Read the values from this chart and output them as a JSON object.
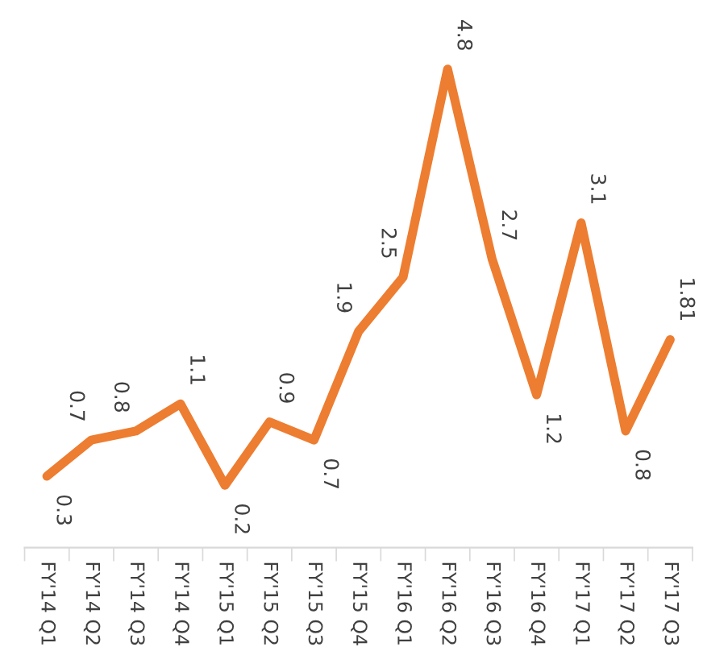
{
  "chart_data": {
    "type": "line",
    "categories": [
      "FY'14 Q1",
      "FY'14 Q2",
      "FY'14 Q3",
      "FY'14 Q4",
      "FY'15 Q1",
      "FY'15 Q2",
      "FY'15 Q3",
      "FY'15 Q4",
      "FY'16 Q1",
      "FY'16 Q2",
      "FY'16 Q3",
      "FY'16 Q4",
      "FY'17 Q1",
      "FY'17 Q2",
      "FY'17 Q3"
    ],
    "series": [
      {
        "color": "#ed7d31",
        "values": [
          0.3,
          0.7,
          0.8,
          1.1,
          0.2,
          0.9,
          0.7,
          1.9,
          2.5,
          4.8,
          2.7,
          1.2,
          3.1,
          0.8,
          1.81
        ]
      }
    ],
    "data_labels": true,
    "tick_labels": "x",
    "grid": false,
    "legend": false,
    "marker": "none",
    "line_style": "solid"
  }
}
